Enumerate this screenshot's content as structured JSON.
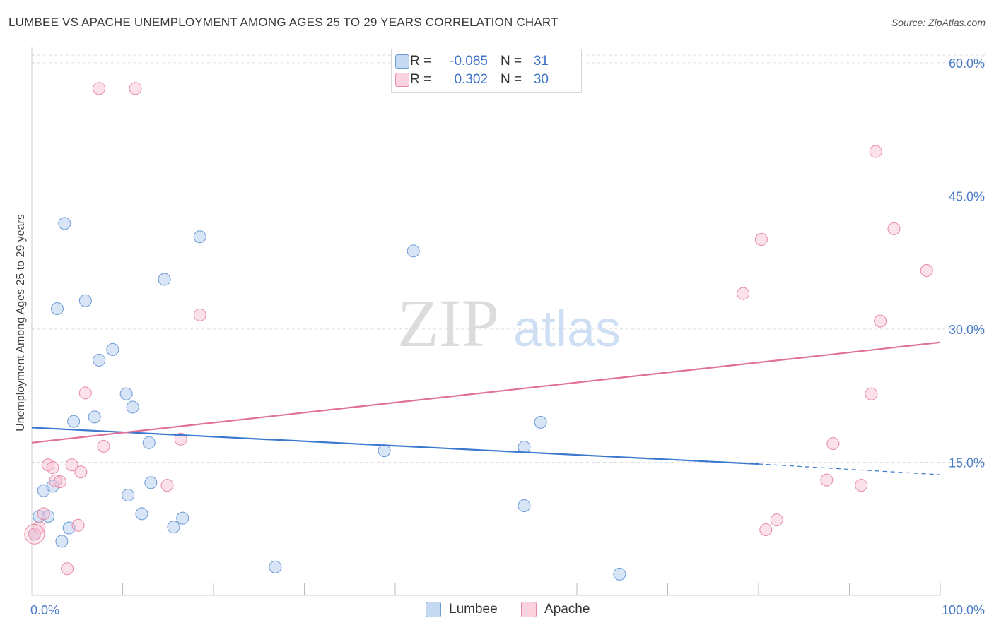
{
  "title": "LUMBEE VS APACHE UNEMPLOYMENT AMONG AGES 25 TO 29 YEARS CORRELATION CHART",
  "source": "Source: ZipAtlas.com",
  "watermark": {
    "zip": "ZIP",
    "atlas": "atlas"
  },
  "legend_top": {
    "rows": [
      {
        "r_label": "R =",
        "r_value": "-0.085",
        "n_label": "N =",
        "n_value": "31"
      },
      {
        "r_label": "R =",
        "r_value": "0.302",
        "n_label": "N =",
        "n_value": "30"
      }
    ]
  },
  "legend_bottom": {
    "items": [
      "Lumbee",
      "Apache"
    ]
  },
  "chart_data": {
    "type": "scatter",
    "title": "LUMBEE VS APACHE UNEMPLOYMENT AMONG AGES 25 TO 29 YEARS CORRELATION CHART",
    "xlabel": "",
    "ylabel": "Unemployment Among Ages 25 to 29 years",
    "xlim": [
      0,
      100
    ],
    "ylim": [
      0,
      61.5
    ],
    "x_tick_labels": [
      "0.0%",
      "100.0%"
    ],
    "y_ticks": [
      15,
      30,
      45,
      60
    ],
    "y_tick_labels": [
      "15.0%",
      "30.0%",
      "45.0%",
      "60.0%"
    ],
    "grid": true,
    "legend_position": "bottom",
    "series": [
      {
        "name": "Lumbee",
        "color": "#a9c5ea",
        "edge": "#6d9ad6",
        "line_color": "#3a78cf",
        "trend": {
          "x0": 0,
          "y0": 18.9,
          "x1": 80,
          "y1": 14.8,
          "dash_to_x": 100,
          "dash_to_y": 13.6
        },
        "points": [
          [
            0.3,
            6.9
          ],
          [
            0.8,
            8.9
          ],
          [
            1.3,
            11.8
          ],
          [
            1.8,
            8.9
          ],
          [
            2.3,
            12.3
          ],
          [
            2.8,
            32.3
          ],
          [
            3.3,
            6.1
          ],
          [
            3.6,
            41.9
          ],
          [
            4.1,
            7.6
          ],
          [
            4.6,
            19.6
          ],
          [
            5.9,
            33.2
          ],
          [
            6.9,
            20.1
          ],
          [
            7.4,
            26.5
          ],
          [
            8.9,
            27.7
          ],
          [
            10.4,
            22.7
          ],
          [
            10.6,
            11.3
          ],
          [
            11.1,
            21.2
          ],
          [
            12.1,
            9.2
          ],
          [
            12.9,
            17.2
          ],
          [
            13.1,
            12.7
          ],
          [
            14.6,
            35.6
          ],
          [
            15.6,
            7.7
          ],
          [
            16.6,
            8.7
          ],
          [
            18.5,
            40.4
          ],
          [
            26.8,
            3.2
          ],
          [
            38.8,
            16.3
          ],
          [
            42.0,
            38.8
          ],
          [
            54.2,
            16.7
          ],
          [
            54.2,
            10.1
          ],
          [
            56.0,
            19.5
          ],
          [
            64.7,
            2.4
          ]
        ]
      },
      {
        "name": "Apache",
        "color": "#f7bfd0",
        "edge": "#e889a8",
        "line_color": "#e07099",
        "trend": {
          "x0": 0,
          "y0": 17.2,
          "x1": 100,
          "y1": 28.5
        },
        "points": [
          [
            0.3,
            6.9
          ],
          [
            0.8,
            7.7
          ],
          [
            1.3,
            9.2
          ],
          [
            1.8,
            14.7
          ],
          [
            2.3,
            14.4
          ],
          [
            2.6,
            12.9
          ],
          [
            3.1,
            12.8
          ],
          [
            3.9,
            3.0
          ],
          [
            4.4,
            14.7
          ],
          [
            5.1,
            7.9
          ],
          [
            5.4,
            13.9
          ],
          [
            5.9,
            22.8
          ],
          [
            7.4,
            57.1
          ],
          [
            7.9,
            16.8
          ],
          [
            11.4,
            57.1
          ],
          [
            14.9,
            12.4
          ],
          [
            16.4,
            17.6
          ],
          [
            18.5,
            31.6
          ],
          [
            78.3,
            34.0
          ],
          [
            80.3,
            40.1
          ],
          [
            80.8,
            7.4
          ],
          [
            82.0,
            8.5
          ],
          [
            87.5,
            13.0
          ],
          [
            88.2,
            17.1
          ],
          [
            91.3,
            12.4
          ],
          [
            92.4,
            22.7
          ],
          [
            92.9,
            50.0
          ],
          [
            93.4,
            30.9
          ],
          [
            94.9,
            41.3
          ],
          [
            98.5,
            36.6
          ]
        ]
      }
    ]
  }
}
